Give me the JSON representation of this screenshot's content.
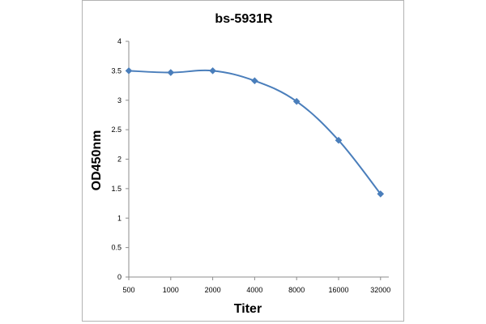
{
  "chart_data": {
    "type": "line",
    "title": "bs-5931R",
    "xlabel": "Titer",
    "ylabel": "OD450nm",
    "categories": [
      "500",
      "1000",
      "2000",
      "4000",
      "8000",
      "16000",
      "32000"
    ],
    "series": [
      {
        "values": [
          3.5,
          3.47,
          3.5,
          3.33,
          2.98,
          2.32,
          1.41
        ],
        "color": "#4a7ebb",
        "marker": "diamond",
        "smooth": true
      }
    ],
    "ylim": [
      0,
      4
    ],
    "yticks": [
      "0",
      "0.5",
      "1",
      "1.5",
      "2",
      "2.5",
      "3",
      "3.5",
      "4"
    ],
    "grid": false,
    "legend": "none"
  }
}
